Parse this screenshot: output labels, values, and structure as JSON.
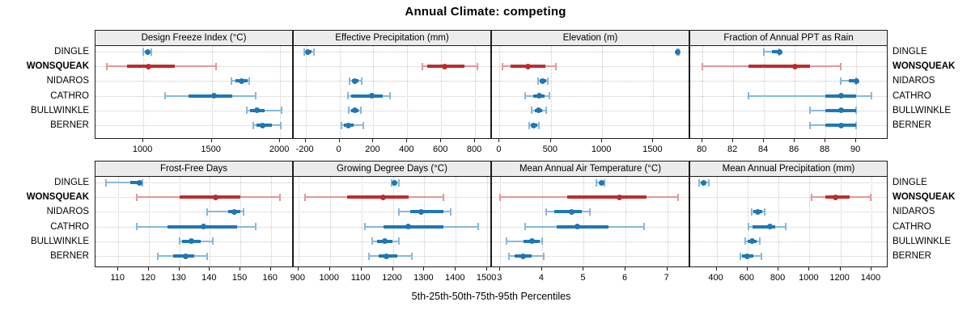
{
  "title": "Annual Climate: competing",
  "axis_label": "5th-25th-50th-75th-95th Percentiles",
  "sites": [
    "DINGLE",
    "WONSQUEAK",
    "NIDAROS",
    "CATHRO",
    "BULLWINKLE",
    "BERNER"
  ],
  "highlight_site": "WONSQUEAK",
  "colors": {
    "blue": "#1f77b4",
    "blue_light": "#85b9dc",
    "red": "#bb2d2d",
    "red_light": "#e39898",
    "strip_bg": "#ececec",
    "grid": "#c8c8c8",
    "border": "#1c1c1c"
  },
  "chart_data": {
    "type": "dot-whisker",
    "note": "values are [5th,25th,50th,75th,95th] percentiles; dot=50th, thick bar=25th-75th, thin line=5th-95th",
    "percentiles": [
      "5th",
      "25th",
      "50th",
      "75th",
      "95th"
    ],
    "legend_position": "none",
    "grid": "dotted",
    "panels": [
      {
        "title": "Design Freeze Index (°C)",
        "row": 0,
        "col": 0,
        "xlim": [
          650,
          2100
        ],
        "ticks": [
          1000,
          1500,
          2000
        ],
        "series": [
          {
            "site": "DINGLE",
            "color": "blue",
            "values": [
              1000,
              1015,
              1030,
              1045,
              1060
            ]
          },
          {
            "site": "WONSQUEAK",
            "color": "red",
            "values": [
              730,
              880,
              1035,
              1230,
              1530
            ]
          },
          {
            "site": "NIDAROS",
            "color": "blue",
            "values": [
              1645,
              1675,
              1720,
              1760,
              1775
            ]
          },
          {
            "site": "CATHRO",
            "color": "blue",
            "values": [
              1160,
              1330,
              1515,
              1650,
              1820
            ]
          },
          {
            "site": "BULLWINKLE",
            "color": "blue",
            "values": [
              1755,
              1780,
              1830,
              1885,
              2010
            ]
          },
          {
            "site": "BERNER",
            "color": "blue",
            "values": [
              1805,
              1825,
              1875,
              1940,
              2005
            ]
          }
        ]
      },
      {
        "title": "Effective Precipitation (mm)",
        "row": 0,
        "col": 1,
        "xlim": [
          -270,
          900
        ],
        "ticks": [
          -200,
          0,
          200,
          400,
          600,
          800
        ],
        "series": [
          {
            "site": "DINGLE",
            "color": "blue",
            "values": [
              -210,
              -195,
              -187,
              -165,
              -150
            ]
          },
          {
            "site": "WONSQUEAK",
            "color": "red",
            "values": [
              490,
              520,
              620,
              740,
              815
            ]
          },
          {
            "site": "NIDAROS",
            "color": "blue",
            "values": [
              60,
              75,
              90,
              110,
              130
            ]
          },
          {
            "site": "CATHRO",
            "color": "blue",
            "values": [
              50,
              70,
              190,
              255,
              300
            ]
          },
          {
            "site": "BULLWINKLE",
            "color": "blue",
            "values": [
              55,
              70,
              90,
              110,
              125
            ]
          },
          {
            "site": "BERNER",
            "color": "blue",
            "values": [
              10,
              25,
              50,
              85,
              140
            ]
          }
        ]
      },
      {
        "title": "Elevation (m)",
        "row": 0,
        "col": 2,
        "xlim": [
          -75,
          1860
        ],
        "ticks": [
          0,
          500,
          1000,
          1500
        ],
        "series": [
          {
            "site": "DINGLE",
            "color": "blue",
            "values": [
              1730,
              1735,
              1740,
              1745,
              1750
            ]
          },
          {
            "site": "WONSQUEAK",
            "color": "red",
            "values": [
              30,
              105,
              280,
              450,
              550
            ]
          },
          {
            "site": "NIDAROS",
            "color": "blue",
            "values": [
              375,
              390,
              415,
              455,
              470
            ]
          },
          {
            "site": "CATHRO",
            "color": "blue",
            "values": [
              245,
              330,
              385,
              440,
              485
            ]
          },
          {
            "site": "BULLWINKLE",
            "color": "blue",
            "values": [
              310,
              345,
              380,
              415,
              455
            ]
          },
          {
            "site": "BERNER",
            "color": "blue",
            "values": [
              290,
              305,
              335,
              370,
              385
            ]
          }
        ]
      },
      {
        "title": "Fraction of Annual PPT as Rain",
        "row": 0,
        "col": 3,
        "xlim": [
          79.2,
          92.1
        ],
        "ticks": [
          80,
          82,
          84,
          86,
          88,
          90
        ],
        "series": [
          {
            "site": "DINGLE",
            "color": "blue",
            "values": [
              84,
              84.5,
              85,
              85,
              85
            ]
          },
          {
            "site": "WONSQUEAK",
            "color": "red",
            "values": [
              80,
              83,
              86,
              87,
              89
            ]
          },
          {
            "site": "NIDAROS",
            "color": "blue",
            "values": [
              89,
              89.5,
              90,
              90,
              90
            ]
          },
          {
            "site": "CATHRO",
            "color": "blue",
            "values": [
              83,
              88,
              89,
              90,
              91
            ]
          },
          {
            "site": "BULLWINKLE",
            "color": "blue",
            "values": [
              87,
              88,
              89,
              90,
              90
            ]
          },
          {
            "site": "BERNER",
            "color": "blue",
            "values": [
              87,
              88,
              89,
              90,
              90
            ]
          }
        ]
      },
      {
        "title": "Frost-Free Days",
        "row": 1,
        "col": 0,
        "xlim": [
          102.5,
          167.5
        ],
        "ticks": [
          110,
          120,
          130,
          140,
          150,
          160
        ],
        "series": [
          {
            "site": "DINGLE",
            "color": "blue",
            "values": [
              106,
              114,
              117,
              117,
              118
            ]
          },
          {
            "site": "WONSQUEAK",
            "color": "red",
            "values": [
              116,
              130,
              142,
              150,
              163
            ]
          },
          {
            "site": "NIDAROS",
            "color": "blue",
            "values": [
              139,
              146,
              148,
              150,
              151
            ]
          },
          {
            "site": "CATHRO",
            "color": "blue",
            "values": [
              116,
              126,
              138,
              149,
              155
            ]
          },
          {
            "site": "BULLWINKLE",
            "color": "blue",
            "values": [
              130,
              131,
              134,
              137,
              141
            ]
          },
          {
            "site": "BERNER",
            "color": "blue",
            "values": [
              123,
              128,
              132,
              135,
              139
            ]
          }
        ]
      },
      {
        "title": "Growing Degree Days (°C)",
        "row": 1,
        "col": 1,
        "xlim": [
          885,
          1515
        ],
        "ticks": [
          900,
          1000,
          1100,
          1200,
          1300,
          1400,
          1500
        ],
        "series": [
          {
            "site": "DINGLE",
            "color": "blue",
            "values": [
              1195,
              1200,
              1205,
              1212,
              1218
            ]
          },
          {
            "site": "WONSQUEAK",
            "color": "red",
            "values": [
              920,
              1055,
              1170,
              1250,
              1360
            ]
          },
          {
            "site": "NIDAROS",
            "color": "blue",
            "values": [
              1220,
              1255,
              1290,
              1360,
              1385
            ]
          },
          {
            "site": "CATHRO",
            "color": "blue",
            "values": [
              1110,
              1170,
              1250,
              1360,
              1470
            ]
          },
          {
            "site": "BULLWINKLE",
            "color": "blue",
            "values": [
              1135,
              1150,
              1175,
              1200,
              1220
            ]
          },
          {
            "site": "BERNER",
            "color": "blue",
            "values": [
              1125,
              1155,
              1180,
              1215,
              1260
            ]
          }
        ]
      },
      {
        "title": "Mean Annual Air Temperature (°C)",
        "row": 1,
        "col": 2,
        "xlim": [
          2.8,
          7.55
        ],
        "ticks": [
          3,
          4,
          5,
          6,
          7
        ],
        "series": [
          {
            "site": "DINGLE",
            "color": "blue",
            "values": [
              5.3,
              5.38,
              5.42,
              5.46,
              5.5
            ]
          },
          {
            "site": "WONSQUEAK",
            "color": "red",
            "values": [
              3.0,
              4.6,
              5.85,
              6.5,
              7.25
            ]
          },
          {
            "site": "NIDAROS",
            "color": "blue",
            "values": [
              4.1,
              4.3,
              4.7,
              4.95,
              5.15
            ]
          },
          {
            "site": "CATHRO",
            "color": "blue",
            "values": [
              3.6,
              4.35,
              4.85,
              5.6,
              6.45
            ]
          },
          {
            "site": "BULLWINKLE",
            "color": "blue",
            "values": [
              3.15,
              3.55,
              3.75,
              3.95,
              4.0
            ]
          },
          {
            "site": "BERNER",
            "color": "blue",
            "values": [
              3.2,
              3.35,
              3.55,
              3.75,
              4.05
            ]
          }
        ]
      },
      {
        "title": "Mean Annual Precipitation (mm)",
        "row": 1,
        "col": 3,
        "xlim": [
          230,
          1510
        ],
        "ticks": [
          400,
          600,
          800,
          1000,
          1200,
          1400
        ],
        "series": [
          {
            "site": "DINGLE",
            "color": "blue",
            "values": [
              290,
              305,
              315,
              330,
              350
            ]
          },
          {
            "site": "WONSQUEAK",
            "color": "red",
            "values": [
              1015,
              1105,
              1170,
              1260,
              1395
            ]
          },
          {
            "site": "NIDAROS",
            "color": "blue",
            "values": [
              625,
              640,
              665,
              695,
              710
            ]
          },
          {
            "site": "CATHRO",
            "color": "blue",
            "values": [
              605,
              630,
              745,
              780,
              845
            ]
          },
          {
            "site": "BULLWINKLE",
            "color": "blue",
            "values": [
              585,
              600,
              630,
              660,
              680
            ]
          },
          {
            "site": "BERNER",
            "color": "blue",
            "values": [
              555,
              565,
              600,
              640,
              690
            ]
          }
        ]
      }
    ]
  }
}
